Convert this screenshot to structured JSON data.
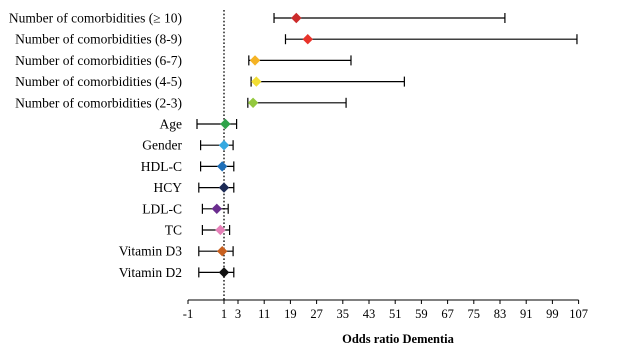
{
  "chart_data": {
    "type": "forest",
    "title": "",
    "xlabel": "Odds ratio Dementia",
    "ylabel": "",
    "xlim": [
      -1,
      107
    ],
    "xticks": [
      "-1",
      "1",
      "3",
      "11",
      "19",
      "27",
      "35",
      "43",
      "51",
      "59",
      "67",
      "75",
      "83",
      "91",
      "99",
      "107"
    ],
    "xtick_values": [
      -1,
      1,
      3,
      11,
      19,
      27,
      35,
      43,
      51,
      59,
      67,
      75,
      83,
      91,
      99,
      107
    ],
    "reference_line": 1,
    "grid": false,
    "rows": [
      {
        "label": "Number of comorbidities (≥ 10)",
        "or": 20.8,
        "lo": 14.0,
        "hi": 84.5,
        "color": "#cc2b2b"
      },
      {
        "label": "Number of comorbidities (8-9)",
        "or": 24.3,
        "lo": 17.5,
        "hi": 106.5,
        "color": "#e8332a"
      },
      {
        "label": "Number of comorbidities (6-7)",
        "or": 8.2,
        "lo": 6.3,
        "hi": 37.5,
        "color": "#f5b324"
      },
      {
        "label": "Number of comorbidities (4-5)",
        "or": 8.6,
        "lo": 7.0,
        "hi": 53.8,
        "color": "#f2dd33"
      },
      {
        "label": "Number of comorbidities (2-3)",
        "or": 7.6,
        "lo": 6.0,
        "hi": 36.0,
        "color": "#93c83e"
      },
      {
        "label": "Age",
        "or": 1.2,
        "lo": -0.5,
        "hi": 2.8,
        "color": "#2ea34a"
      },
      {
        "label": "Gender",
        "or": 1.0,
        "lo": -0.3,
        "hi": 2.3,
        "color": "#36a9e1"
      },
      {
        "label": "HDL-C",
        "or": 0.9,
        "lo": -0.3,
        "hi": 2.4,
        "color": "#1f6fb8"
      },
      {
        "label": "HCY",
        "or": 1.0,
        "lo": -0.4,
        "hi": 2.4,
        "color": "#1c2a55"
      },
      {
        "label": "LDL-C",
        "or": 0.6,
        "lo": -0.2,
        "hi": 1.6,
        "color": "#6b2d8f"
      },
      {
        "label": "TC",
        "or": 0.8,
        "lo": -0.2,
        "hi": 1.8,
        "color": "#e680b8"
      },
      {
        "label": "Vitamin D3",
        "or": 0.9,
        "lo": -0.4,
        "hi": 2.3,
        "color": "#c8601f"
      },
      {
        "label": "Vitamin D2",
        "or": 1.0,
        "lo": -0.4,
        "hi": 2.4,
        "color": "#111111"
      }
    ]
  }
}
